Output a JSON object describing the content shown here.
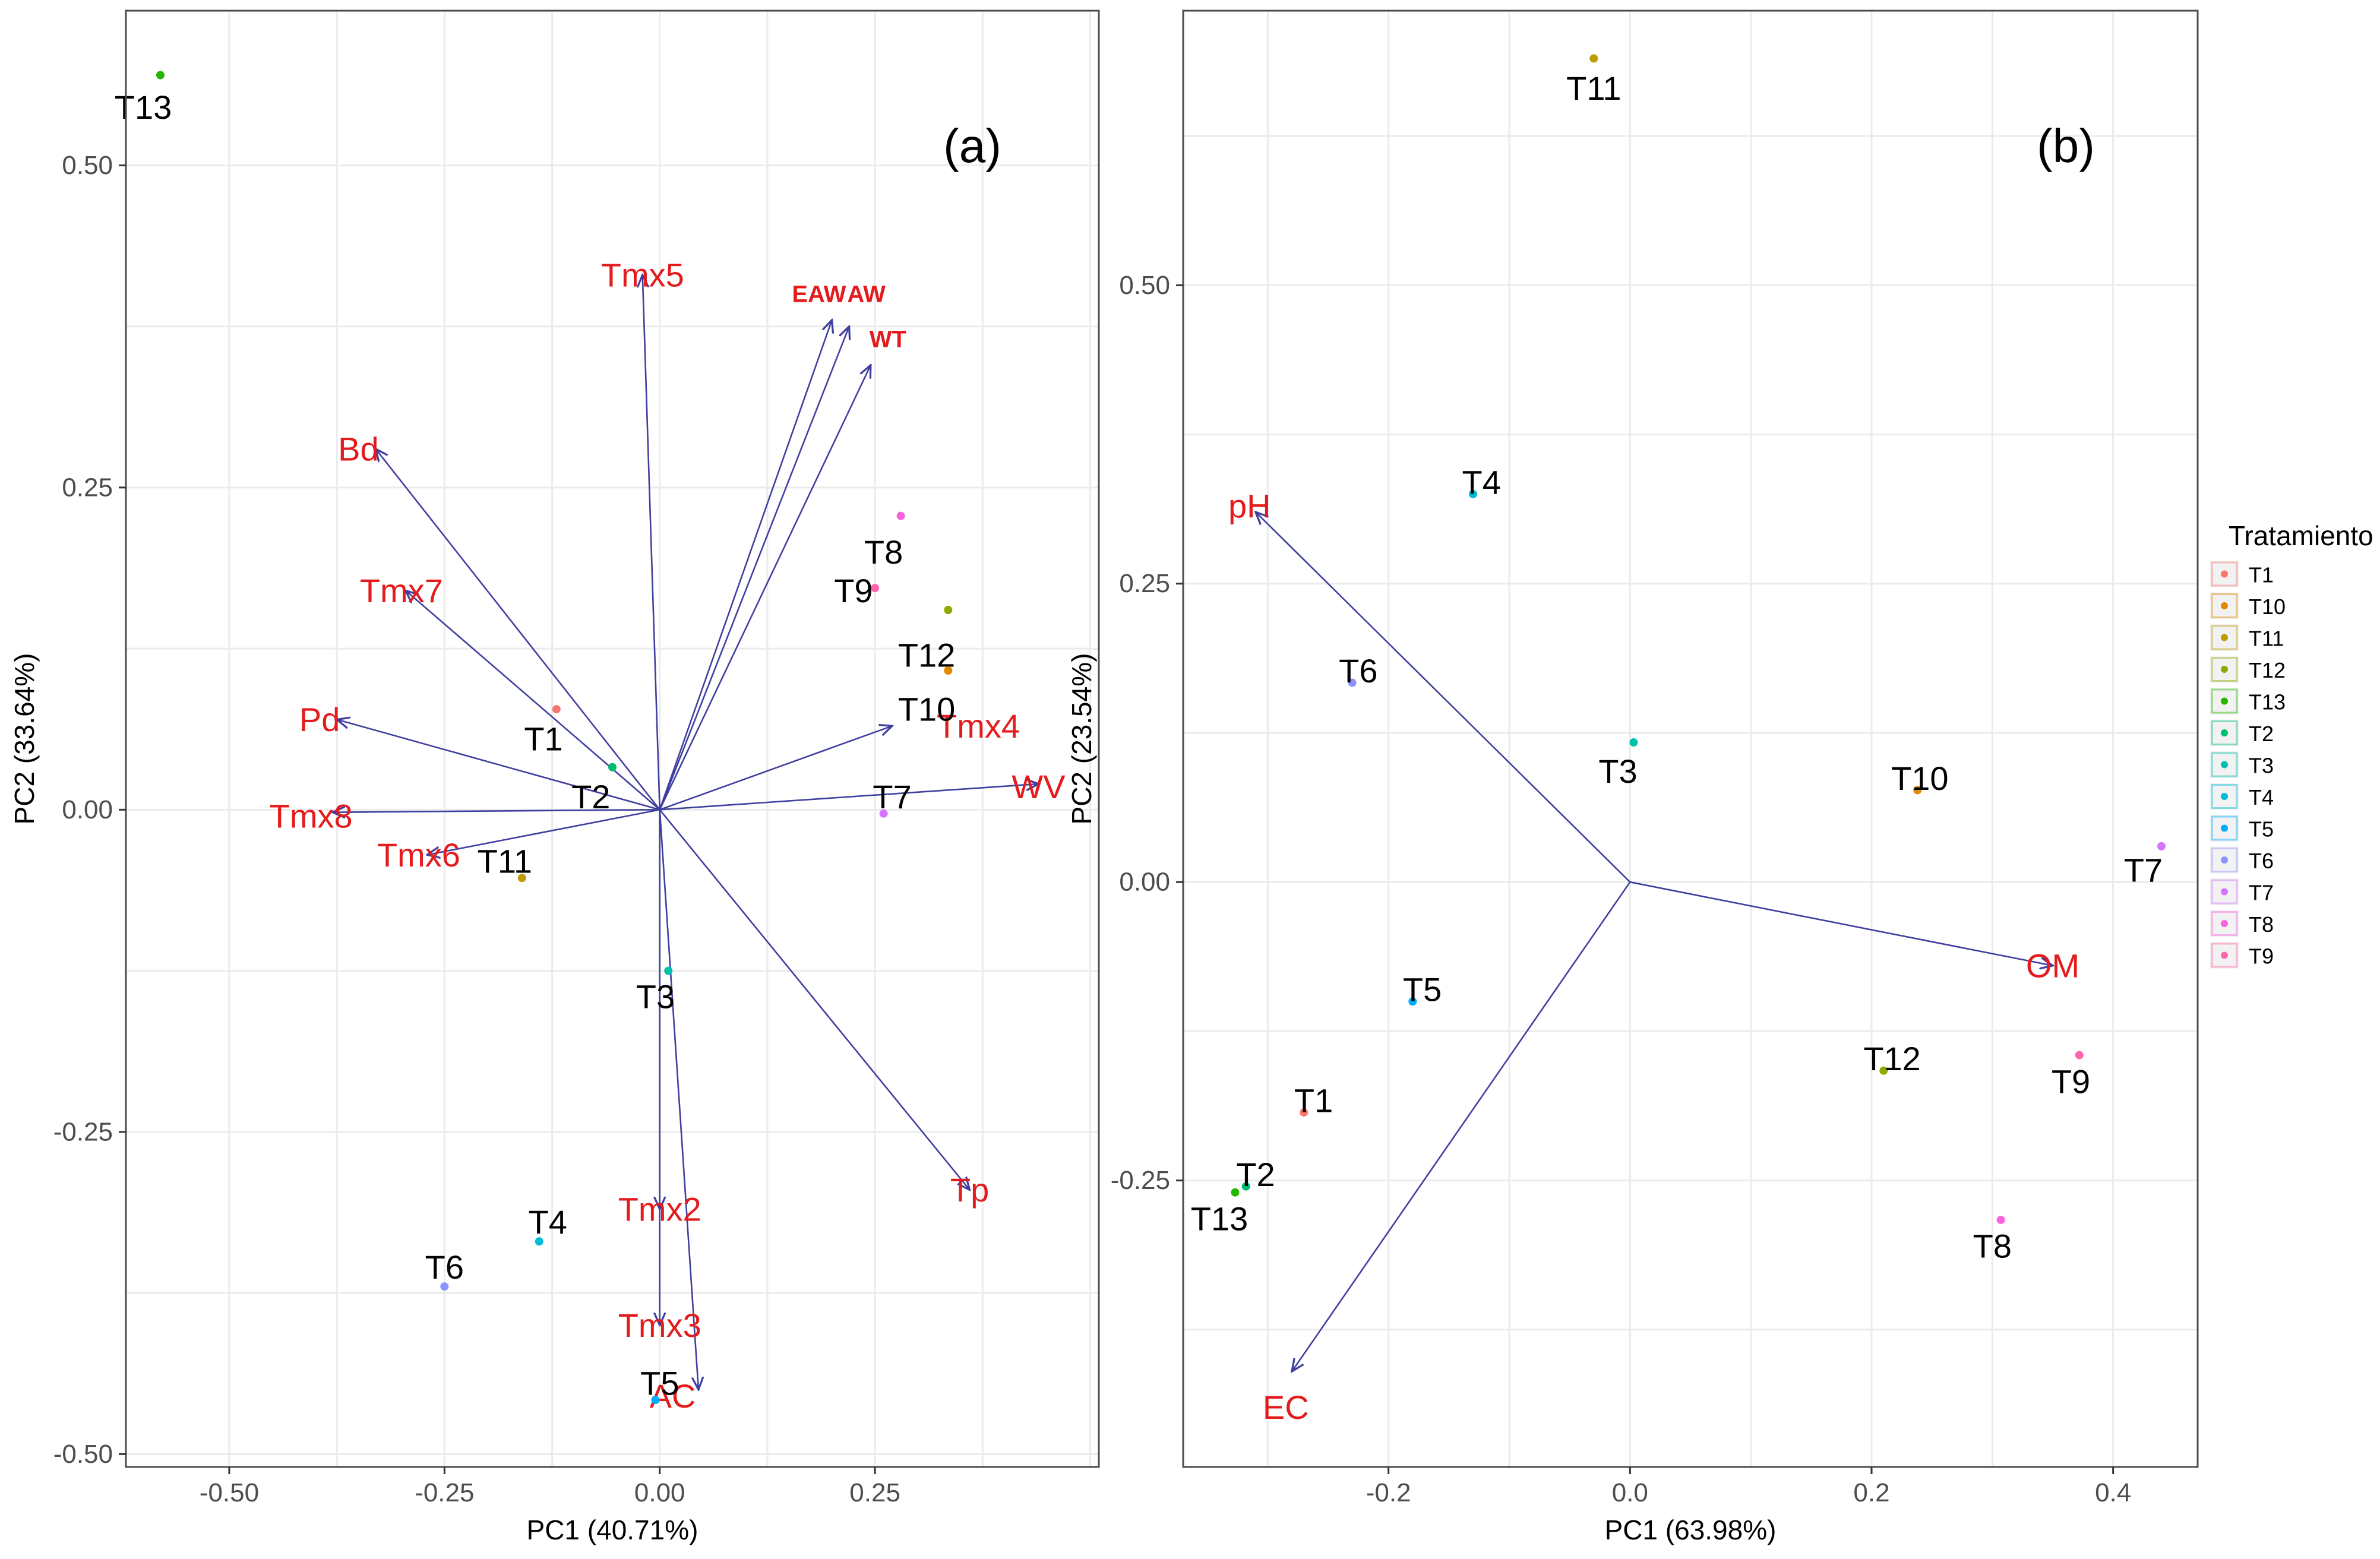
{
  "legend": {
    "title": "Tratamiento",
    "items": [
      "T1",
      "T10",
      "T11",
      "T12",
      "T13",
      "T2",
      "T3",
      "T4",
      "T5",
      "T6",
      "T7",
      "T8",
      "T9"
    ]
  },
  "colors": {
    "T1": "#F8766D",
    "T10": "#E18A00",
    "T11": "#BE9C00",
    "T12": "#8CAB00",
    "T13": "#24B700",
    "T2": "#00BE70",
    "T3": "#00C1AB",
    "T4": "#00BBDA",
    "T5": "#00ACFC",
    "T6": "#8B93FF",
    "T7": "#D575FE",
    "T8": "#F962DD",
    "T9": "#FF65AC",
    "arrow": "#3F3F9F",
    "variable_label": "#E41A1C",
    "panel_border": "#4D4D4D",
    "grid": "#EBEBEB"
  },
  "chart_data": [
    {
      "type": "scatter",
      "panel_label": "(a)",
      "xlabel": "PC1 (40.71%)",
      "ylabel": "PC2 (33.64%)",
      "xlim": [
        -0.62,
        0.51
      ],
      "ylim": [
        -0.51,
        0.62
      ],
      "x_ticks": [
        -0.5,
        -0.25,
        0,
        0.25
      ],
      "x_tick_labels": [
        "-0.50",
        "-0.25",
        "0.00",
        "0.25"
      ],
      "y_ticks": [
        -0.5,
        -0.25,
        0,
        0.25,
        0.5
      ],
      "y_tick_labels": [
        "-0.50",
        "-0.25",
        "0.00",
        "0.25",
        "0.50"
      ],
      "grid": true,
      "points": [
        {
          "label": "T13",
          "x": -0.58,
          "y": 0.57,
          "lx": -0.6,
          "ly": 0.545
        },
        {
          "label": "T8",
          "x": 0.28,
          "y": 0.228,
          "lx": 0.26,
          "ly": 0.2
        },
        {
          "label": "T9",
          "x": 0.25,
          "y": 0.172,
          "lx": 0.225,
          "ly": 0.17
        },
        {
          "label": "T12",
          "x": 0.335,
          "y": 0.155,
          "lx": 0.31,
          "ly": 0.12
        },
        {
          "label": "T10",
          "x": 0.335,
          "y": 0.108,
          "lx": 0.31,
          "ly": 0.078
        },
        {
          "label": "T1",
          "x": -0.12,
          "y": 0.078,
          "lx": -0.135,
          "ly": 0.055
        },
        {
          "label": "T2",
          "x": -0.055,
          "y": 0.033,
          "lx": -0.08,
          "ly": 0.01
        },
        {
          "label": "T7",
          "x": 0.26,
          "y": -0.003,
          "lx": 0.27,
          "ly": 0.01
        },
        {
          "label": "T11",
          "x": -0.16,
          "y": -0.053,
          "lx": -0.18,
          "ly": -0.04
        },
        {
          "label": "T3",
          "x": 0.01,
          "y": -0.125,
          "lx": -0.005,
          "ly": -0.145
        },
        {
          "label": "T4",
          "x": -0.14,
          "y": -0.335,
          "lx": -0.13,
          "ly": -0.32
        },
        {
          "label": "T6",
          "x": -0.25,
          "y": -0.37,
          "lx": -0.25,
          "ly": -0.355
        },
        {
          "label": "T5",
          "x": -0.005,
          "y": -0.458,
          "lx": 0,
          "ly": -0.445
        }
      ],
      "vectors": [
        {
          "label": "Tmx5",
          "x": -0.02,
          "y": 0.415,
          "lx": -0.02,
          "ly": 0.415
        },
        {
          "label": "EAW",
          "x": 0.2,
          "y": 0.38,
          "lx": 0.185,
          "ly": 0.4,
          "bold": true
        },
        {
          "label": "AW",
          "x": 0.22,
          "y": 0.375,
          "lx": 0.24,
          "ly": 0.4,
          "bold": true
        },
        {
          "label": "WT",
          "x": 0.245,
          "y": 0.345,
          "lx": 0.265,
          "ly": 0.365,
          "bold": true
        },
        {
          "label": "Bd",
          "x": -0.33,
          "y": 0.28,
          "lx": -0.35,
          "ly": 0.28
        },
        {
          "label": "Tmx7",
          "x": -0.295,
          "y": 0.17,
          "lx": -0.3,
          "ly": 0.17
        },
        {
          "label": "Pd",
          "x": -0.375,
          "y": 0.07,
          "lx": -0.395,
          "ly": 0.07
        },
        {
          "label": "Tmx8",
          "x": -0.38,
          "y": -0.002,
          "lx": -0.405,
          "ly": -0.005
        },
        {
          "label": "Tmx6",
          "x": -0.27,
          "y": -0.035,
          "lx": -0.28,
          "ly": -0.035
        },
        {
          "label": "Tmx4",
          "x": 0.27,
          "y": 0.065,
          "lx": 0.37,
          "ly": 0.065
        },
        {
          "label": "WV",
          "x": 0.44,
          "y": 0.02,
          "lx": 0.44,
          "ly": 0.018
        },
        {
          "label": "Tp",
          "x": 0.36,
          "y": -0.295,
          "lx": 0.36,
          "ly": -0.295
        },
        {
          "label": "Tmx2",
          "x": 0.0,
          "y": -0.31,
          "lx": 0.0,
          "ly": -0.31
        },
        {
          "label": "Tmx3",
          "x": 0.0,
          "y": -0.4,
          "lx": 0.0,
          "ly": -0.4
        },
        {
          "label": "AC",
          "x": 0.045,
          "y": -0.45,
          "lx": 0.015,
          "ly": -0.455
        }
      ]
    },
    {
      "type": "scatter",
      "panel_label": "(b)",
      "xlabel": "PC1 (63.98%)",
      "ylabel": "PC2 (23.54%)",
      "xlim": [
        -0.37,
        0.47
      ],
      "ylim": [
        -0.49,
        0.73
      ],
      "x_ticks": [
        -0.2,
        0,
        0.2,
        0.4
      ],
      "x_tick_labels": [
        "-0.2",
        "0.0",
        "0.2",
        "0.4"
      ],
      "y_ticks": [
        -0.25,
        0,
        0.25,
        0.5
      ],
      "y_tick_labels": [
        "-0.25",
        "0.00",
        "0.25",
        "0.50"
      ],
      "grid": true,
      "points": [
        {
          "label": "T11",
          "x": -0.03,
          "y": 0.69,
          "lx": -0.03,
          "ly": 0.665
        },
        {
          "label": "T4",
          "x": -0.13,
          "y": 0.325,
          "lx": -0.123,
          "ly": 0.335
        },
        {
          "label": "T6",
          "x": -0.23,
          "y": 0.167,
          "lx": -0.225,
          "ly": 0.177
        },
        {
          "label": "T3",
          "x": 0.003,
          "y": 0.117,
          "lx": -0.01,
          "ly": 0.093
        },
        {
          "label": "T10",
          "x": 0.238,
          "y": 0.077,
          "lx": 0.24,
          "ly": 0.087
        },
        {
          "label": "T7",
          "x": 0.44,
          "y": 0.03,
          "lx": 0.425,
          "ly": 0.01
        },
        {
          "label": "T5",
          "x": -0.18,
          "y": -0.1,
          "lx": -0.172,
          "ly": -0.09
        },
        {
          "label": "T12",
          "x": 0.21,
          "y": -0.158,
          "lx": 0.217,
          "ly": -0.148
        },
        {
          "label": "T9",
          "x": 0.372,
          "y": -0.145,
          "lx": 0.365,
          "ly": -0.167
        },
        {
          "label": "T1",
          "x": -0.27,
          "y": -0.193,
          "lx": -0.262,
          "ly": -0.183
        },
        {
          "label": "T2",
          "x": -0.318,
          "y": -0.255,
          "lx": -0.31,
          "ly": -0.245
        },
        {
          "label": "T13",
          "x": -0.327,
          "y": -0.26,
          "lx": -0.34,
          "ly": -0.282
        },
        {
          "label": "T8",
          "x": 0.307,
          "y": -0.283,
          "lx": 0.3,
          "ly": -0.305
        }
      ],
      "vectors": [
        {
          "label": "pH",
          "x": -0.31,
          "y": 0.31,
          "lx": -0.315,
          "ly": 0.315
        },
        {
          "label": "OM",
          "x": 0.35,
          "y": -0.07,
          "lx": 0.35,
          "ly": -0.07
        },
        {
          "label": "EC",
          "x": -0.28,
          "y": -0.41,
          "lx": -0.285,
          "ly": -0.44
        }
      ]
    }
  ]
}
